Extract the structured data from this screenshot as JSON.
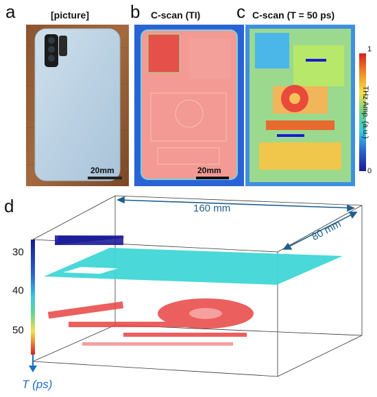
{
  "panels": {
    "a": {
      "letter": "a",
      "title": "[picture]",
      "scalebar": "20mm"
    },
    "b": {
      "letter": "b",
      "title": "C-scan (TI)",
      "scalebar": "20mm"
    },
    "c": {
      "letter": "c",
      "title": "C-scan (T = 50 ps)",
      "colorbar_label": "THz Amp. (a.u.)",
      "colorbar_max": "1",
      "colorbar_min": "0"
    },
    "d": {
      "letter": "d",
      "width_label": "160 mm",
      "depth_label": "80 mm",
      "ticks": [
        "30",
        "40",
        "50"
      ],
      "axis_label": "T (ps)"
    }
  },
  "colors": {
    "accent": "#1f5f8b",
    "axis_blue": "#1a6fc6"
  }
}
